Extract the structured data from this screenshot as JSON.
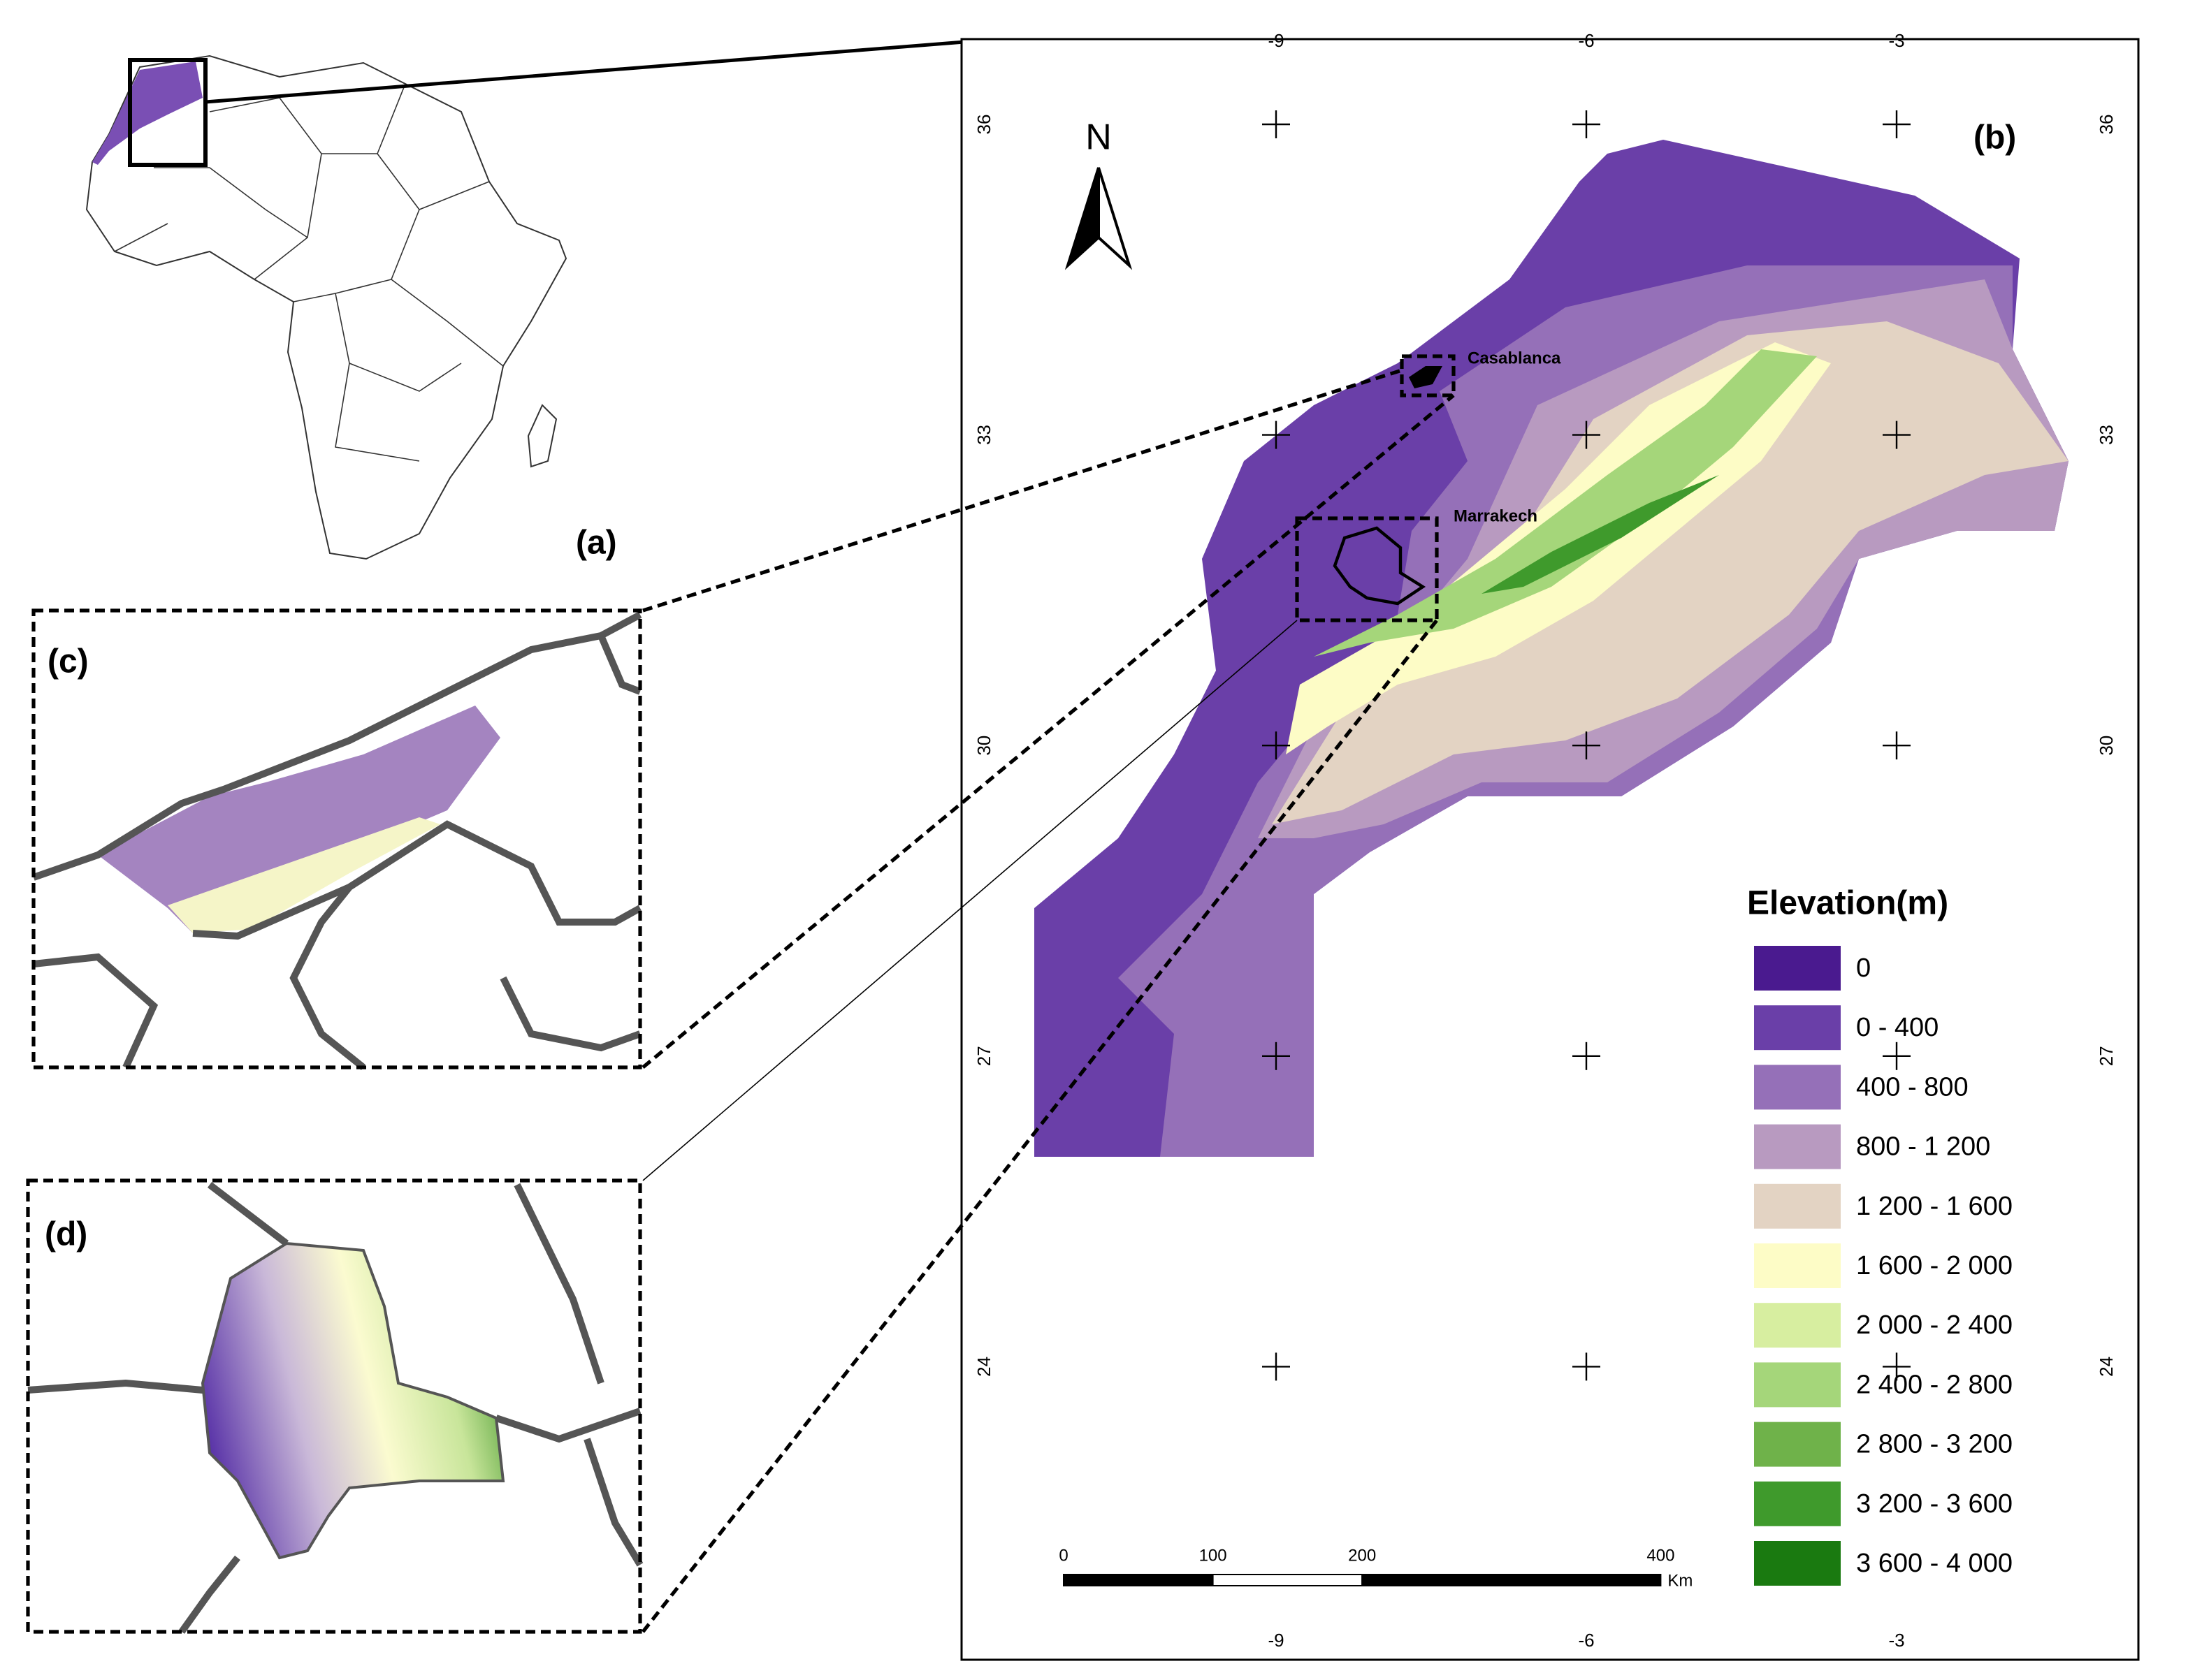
{
  "panels": {
    "a": "(a)",
    "b": "(b)",
    "c": "(c)",
    "d": "(d)"
  },
  "north_arrow": "N",
  "cities": [
    "Casablanca",
    "Marrakech"
  ],
  "graticule": {
    "lon_ticks": [
      -9,
      -6,
      -3
    ],
    "lat_ticks": [
      36,
      33,
      30,
      27,
      24
    ]
  },
  "legend": {
    "title": "Elevation(m)",
    "items": [
      {
        "label": "0",
        "color": "#4a1a8f"
      },
      {
        "label": "0 - 400",
        "color": "#6a3fa8"
      },
      {
        "label": "400 - 800",
        "color": "#9570b8"
      },
      {
        "label": "800 - 1 200",
        "color": "#b89ac0"
      },
      {
        "label": "1 200 - 1 600",
        "color": "#e3d3c3"
      },
      {
        "label": "1 600 - 2 000",
        "color": "#fdfcc6"
      },
      {
        "label": "2 000 - 2 400",
        "color": "#d7eea0"
      },
      {
        "label": "2 400 - 2 800",
        "color": "#a5d67a"
      },
      {
        "label": "2 800 - 3 200",
        "color": "#6fb24a"
      },
      {
        "label": "3 200 - 3 600",
        "color": "#3f9a2c"
      },
      {
        "label": "3 600 - 4 000",
        "color": "#1a7a10"
      }
    ]
  },
  "scale_bar": {
    "ticks": [
      0,
      100,
      200,
      400
    ],
    "unit": "Km"
  }
}
